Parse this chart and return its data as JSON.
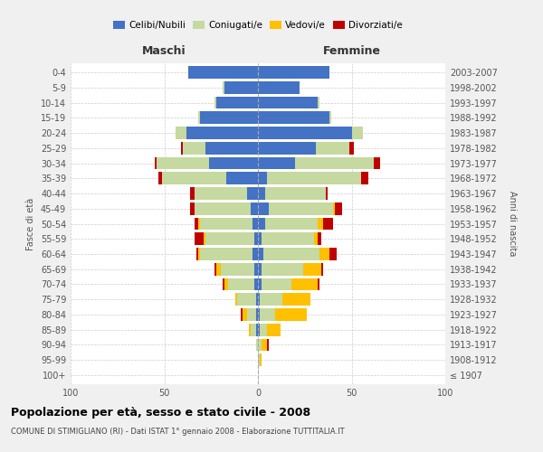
{
  "age_groups": [
    "100+",
    "95-99",
    "90-94",
    "85-89",
    "80-84",
    "75-79",
    "70-74",
    "65-69",
    "60-64",
    "55-59",
    "50-54",
    "45-49",
    "40-44",
    "35-39",
    "30-34",
    "25-29",
    "20-24",
    "15-19",
    "10-14",
    "5-9",
    "0-4"
  ],
  "birth_years": [
    "≤ 1907",
    "1908-1912",
    "1913-1917",
    "1918-1922",
    "1923-1927",
    "1928-1932",
    "1933-1937",
    "1938-1942",
    "1943-1947",
    "1948-1952",
    "1953-1957",
    "1958-1962",
    "1963-1967",
    "1968-1972",
    "1973-1977",
    "1978-1982",
    "1983-1987",
    "1988-1992",
    "1993-1997",
    "1998-2002",
    "2003-2007"
  ],
  "colors": {
    "celibi": "#4472c4",
    "coniugati": "#c5d9a0",
    "vedovi": "#ffc000",
    "divorziati": "#c00000"
  },
  "maschi": {
    "celibi": [
      0,
      0,
      0,
      1,
      1,
      1,
      2,
      2,
      3,
      2,
      3,
      4,
      6,
      17,
      26,
      28,
      38,
      31,
      22,
      18,
      37
    ],
    "coniugati": [
      0,
      0,
      1,
      3,
      5,
      10,
      14,
      18,
      28,
      26,
      28,
      30,
      28,
      34,
      28,
      12,
      6,
      1,
      1,
      1,
      0
    ],
    "vedovi": [
      0,
      0,
      0,
      1,
      2,
      1,
      2,
      2,
      1,
      1,
      1,
      0,
      0,
      0,
      0,
      0,
      0,
      0,
      0,
      0,
      0
    ],
    "divorziati": [
      0,
      0,
      0,
      0,
      1,
      0,
      1,
      1,
      1,
      5,
      2,
      2,
      2,
      2,
      1,
      1,
      0,
      0,
      0,
      0,
      0
    ]
  },
  "femmine": {
    "celibi": [
      0,
      0,
      0,
      1,
      1,
      1,
      2,
      2,
      3,
      2,
      4,
      6,
      4,
      5,
      20,
      31,
      50,
      38,
      32,
      22,
      38
    ],
    "coniugati": [
      0,
      1,
      2,
      4,
      8,
      12,
      16,
      22,
      30,
      28,
      28,
      34,
      32,
      50,
      42,
      18,
      6,
      1,
      1,
      0,
      0
    ],
    "vedovi": [
      0,
      1,
      3,
      7,
      17,
      15,
      14,
      10,
      5,
      2,
      3,
      1,
      0,
      0,
      0,
      0,
      0,
      0,
      0,
      0,
      0
    ],
    "divorziati": [
      0,
      0,
      1,
      0,
      0,
      0,
      1,
      1,
      4,
      2,
      5,
      4,
      1,
      4,
      3,
      2,
      0,
      0,
      0,
      0,
      0
    ]
  },
  "xlim": 100,
  "title": "Popolazione per età, sesso e stato civile - 2008",
  "subtitle": "COMUNE DI STIMIGLIANO (RI) - Dati ISTAT 1° gennaio 2008 - Elaborazione TUTTITALIA.IT",
  "ylabel_left": "Fasce di età",
  "ylabel_right": "Anni di nascita",
  "xlabel_left": "Maschi",
  "xlabel_right": "Femmine",
  "bg_color": "#f0f0f0",
  "plot_bg_color": "#ffffff"
}
